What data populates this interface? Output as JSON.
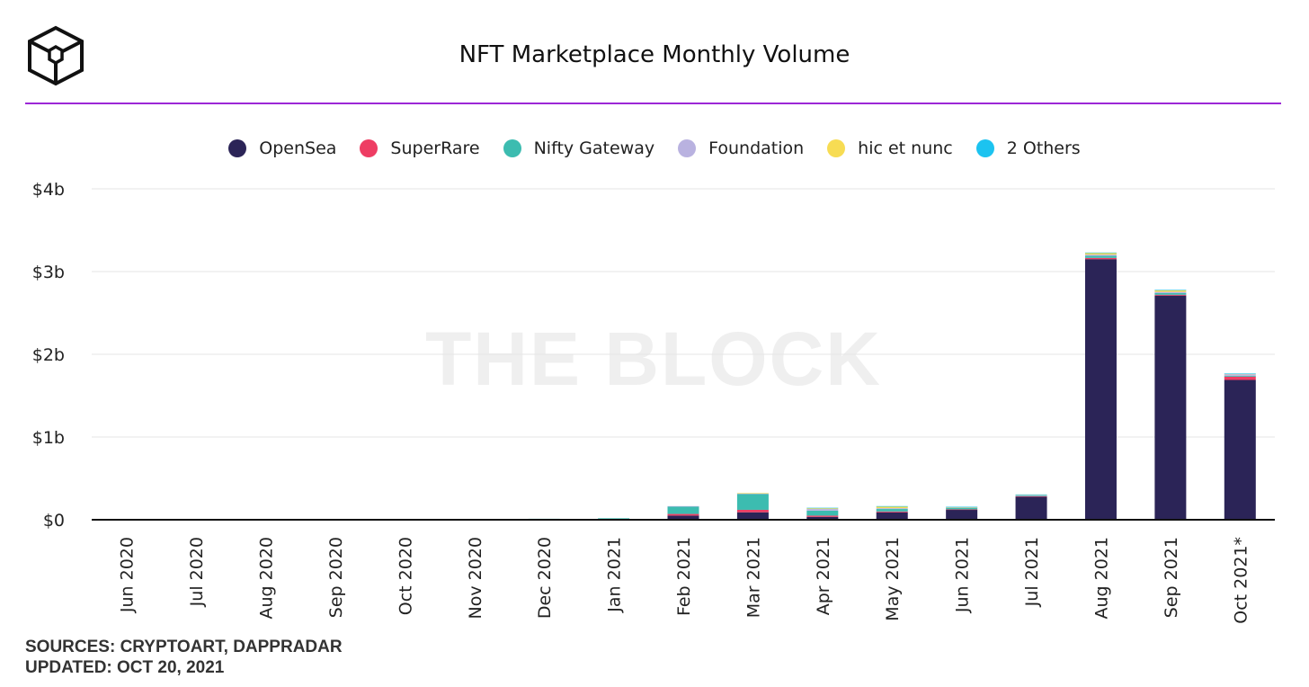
{
  "brand": {
    "logo_icon": "the-block-cube-icon",
    "watermark": "THE BLOCK"
  },
  "title": "NFT Marketplace Monthly Volume",
  "accent_color": "#9c27d6",
  "legend": [
    {
      "label": "OpenSea",
      "color": "#2b2457"
    },
    {
      "label": "SuperRare",
      "color": "#ee3d63"
    },
    {
      "label": "Nifty Gateway",
      "color": "#3cbcb0"
    },
    {
      "label": "Foundation",
      "color": "#b9b2e0"
    },
    {
      "label": "hic et nunc",
      "color": "#f7dc53"
    },
    {
      "label": "2 Others",
      "color": "#1cc3f0"
    }
  ],
  "chart_data": {
    "type": "bar",
    "stacked": true,
    "title": "NFT Marketplace Monthly Volume",
    "categories": [
      "Jun 2020",
      "Jul 2020",
      "Aug 2020",
      "Sep 2020",
      "Oct 2020",
      "Nov 2020",
      "Dec 2020",
      "Jan 2021",
      "Feb 2021",
      "Mar 2021",
      "Apr 2021",
      "May 2021",
      "Jun 2021",
      "Jul 2021",
      "Aug 2021",
      "Sep 2021",
      "Oct 2021*"
    ],
    "y_tick_labels": [
      "$0",
      "$1b",
      "$2b",
      "$3b",
      "$4b"
    ],
    "ylim": [
      0,
      4
    ],
    "y_unit": "billions USD",
    "grid": true,
    "legend_position": "top-center",
    "series": [
      {
        "name": "OpenSea",
        "color": "#2b2457",
        "values": [
          0.001,
          0.001,
          0.001,
          0.002,
          0.002,
          0.002,
          0.003,
          0.008,
          0.05,
          0.09,
          0.035,
          0.09,
          0.12,
          0.28,
          3.15,
          2.71,
          1.69
        ]
      },
      {
        "name": "SuperRare",
        "color": "#ee3d63",
        "values": [
          0,
          0,
          0,
          0,
          0,
          0.001,
          0.002,
          0.002,
          0.02,
          0.03,
          0.015,
          0.01,
          0.005,
          0.004,
          0.015,
          0.01,
          0.04
        ]
      },
      {
        "name": "Nifty Gateway",
        "color": "#3cbcb0",
        "values": [
          0,
          0,
          0,
          0,
          0,
          0,
          0.007,
          0.008,
          0.09,
          0.19,
          0.06,
          0.03,
          0.02,
          0.006,
          0.025,
          0.02,
          0.01
        ]
      },
      {
        "name": "Foundation",
        "color": "#b9b2e0",
        "values": [
          0,
          0,
          0,
          0,
          0,
          0,
          0,
          0,
          0.005,
          0.01,
          0.02,
          0.01,
          0.005,
          0.01,
          0.015,
          0.015,
          0.02
        ]
      },
      {
        "name": "hic et nunc",
        "color": "#f7dc53",
        "values": [
          0,
          0,
          0,
          0,
          0,
          0,
          0,
          0,
          0,
          0.002,
          0.01,
          0.02,
          0.003,
          0.003,
          0.02,
          0.02,
          0.005
        ]
      },
      {
        "name": "2 Others",
        "color": "#1cc3f0",
        "values": [
          0,
          0,
          0,
          0,
          0,
          0,
          0,
          0,
          0,
          0,
          0.005,
          0.005,
          0.004,
          0.003,
          0.005,
          0.005,
          0.003
        ]
      }
    ]
  },
  "footer": {
    "sources": "SOURCES: CRYPTOART, DAPPRADAR",
    "updated": "UPDATED: OCT 20, 2021"
  }
}
